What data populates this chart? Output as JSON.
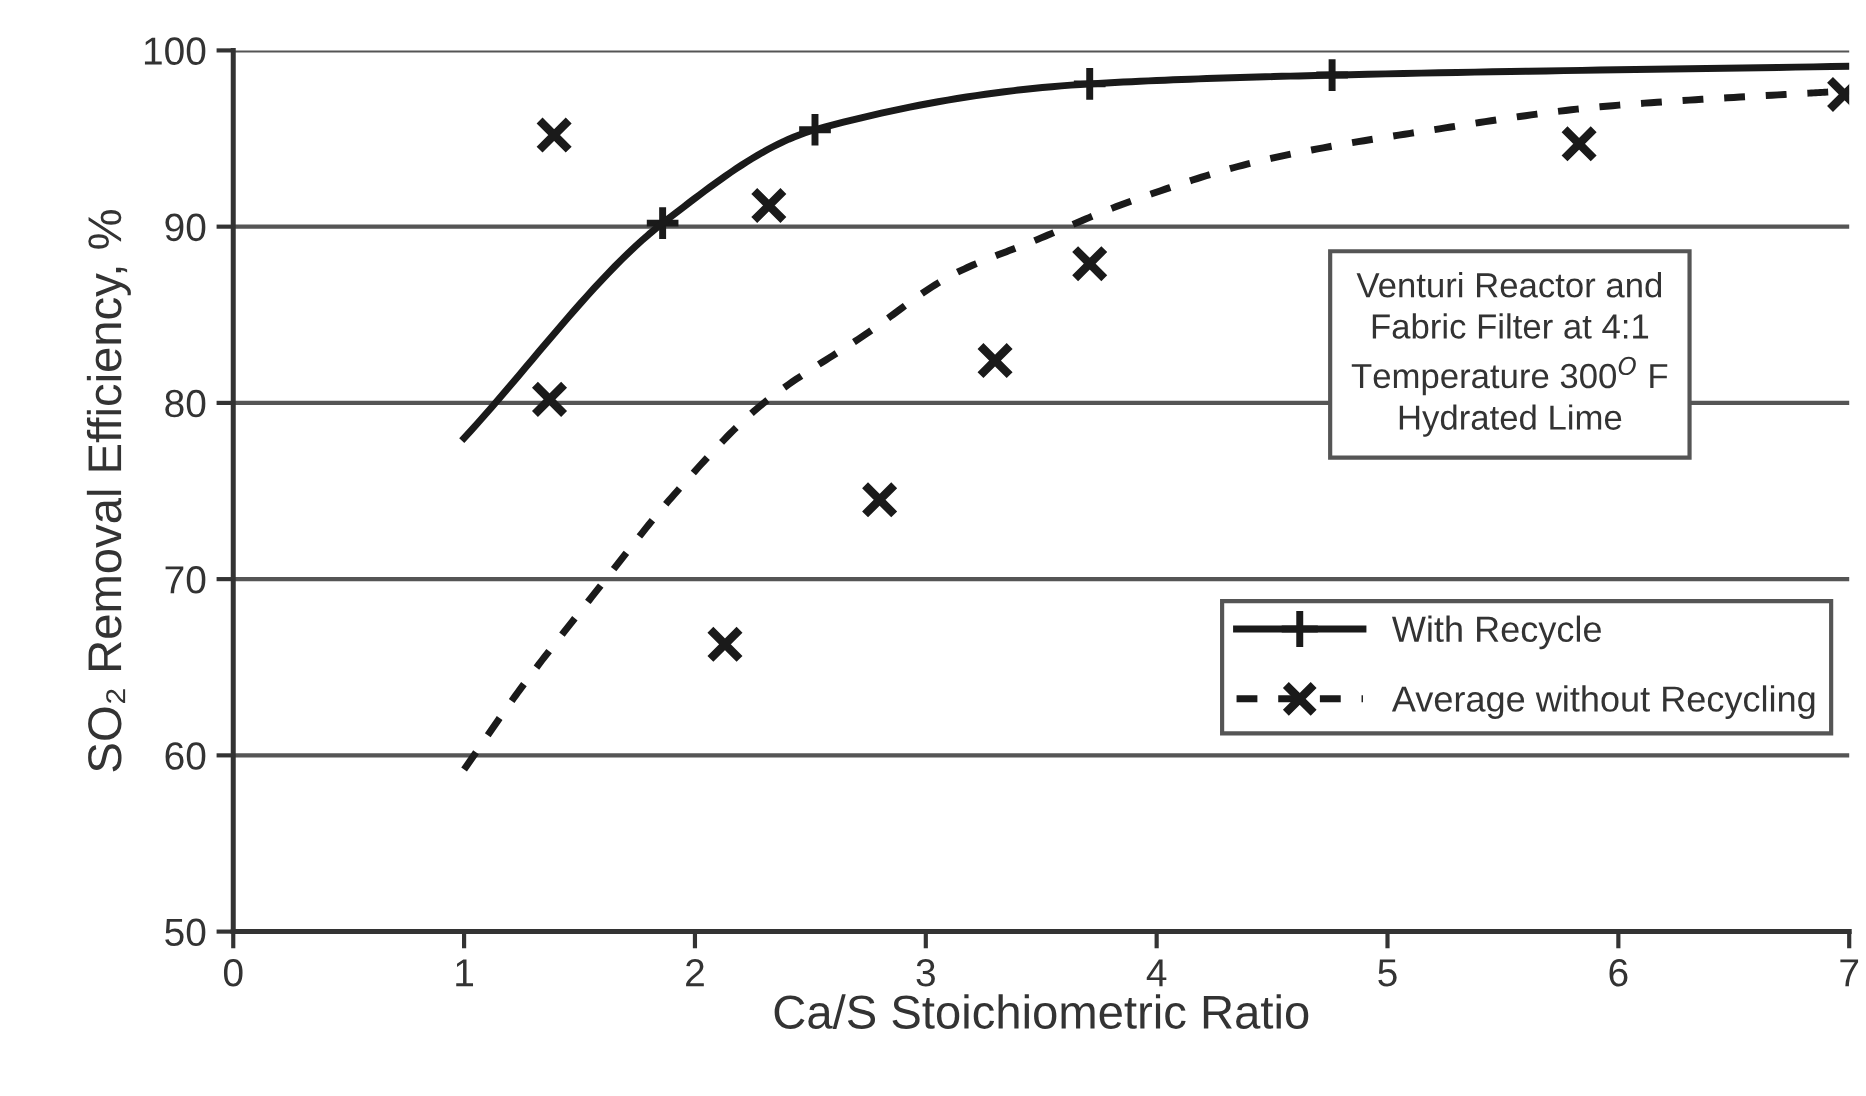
{
  "chart_data": {
    "type": "line",
    "xlabel": "Ca/S Stoichiometric Ratio",
    "ylabel": "SO₂ Removal Efficiency, %",
    "xlim": [
      0,
      7
    ],
    "ylim": [
      50,
      100
    ],
    "xticks": [
      0,
      1,
      2,
      3,
      4,
      5,
      6,
      7
    ],
    "yticks": [
      50,
      60,
      70,
      80,
      90,
      100
    ],
    "grid": "y",
    "legend": "right",
    "annotations": [
      "Venturi Reactor and\nFabric Filter at 4:1\nTemperature 300$^{O}$ F\nHydrated Lime"
    ],
    "series": [
      {
        "name": "With Recycle",
        "color": "#1a1a1a",
        "marker": "none",
        "line_style": "solid",
        "x": [
          1,
          1.86,
          2.52,
          3.71,
          4.76,
          7
        ],
        "values": [
          78,
          90.2,
          95.5,
          98.1,
          98.6,
          99.1
        ]
      },
      {
        "type": "scatter",
        "color": "#1a1a1a",
        "marker": "plus",
        "x": [
          1.86,
          2.52,
          3.71,
          4.76
        ],
        "values": [
          90.2,
          95.5,
          98.1,
          98.6
        ]
      },
      {
        "name": "Average without Recycling",
        "color": "#1a1a1a",
        "marker": "none",
        "line_style": "dashed",
        "x": [
          1,
          1.24,
          1.59,
          1.91,
          2.28,
          2.74,
          3.12,
          3.47,
          3.9,
          4.47,
          5.2,
          5.92,
          6.72,
          7
        ],
        "values": [
          59.2,
          63.7,
          69.6,
          74.8,
          79.8,
          83.9,
          87.3,
          89.2,
          91.5,
          93.8,
          95.5,
          96.8,
          97.5,
          97.7
        ]
      },
      {
        "type": "scatter",
        "color": "#1a1a1a",
        "marker": "cross",
        "x": [
          1.39,
          1.37,
          2.32,
          2.13,
          2.8,
          3.3,
          3.71,
          5.83,
          6.98
        ],
        "values": [
          95.2,
          80.2,
          91.2,
          66.3,
          74.5,
          82.4,
          87.9,
          94.7,
          97.5
        ]
      }
    ]
  }
}
